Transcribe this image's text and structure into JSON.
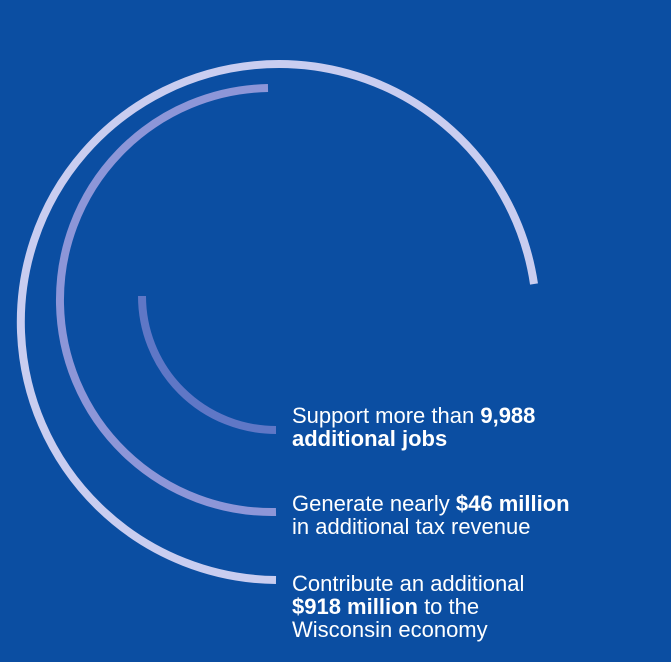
{
  "stats": [
    {
      "line1_prefix": "Support more than ",
      "line1_bold": "9,988",
      "line2_bold": "additional jobs",
      "line2_rest": ""
    },
    {
      "line1_prefix": "Generate nearly ",
      "line1_bold": "$46 million",
      "line2_bold": "",
      "line2_rest": "in additional tax revenue"
    },
    {
      "line1_prefix": "Contribute an additional",
      "line1_bold": "",
      "line2_bold": "$918 million",
      "line2_rest": " to the",
      "line3": "Wisconsin economy"
    }
  ],
  "colors": {
    "background": "#0b4ea2",
    "arc_outer": "#c9cdf0",
    "arc_middle": "#8d96d8",
    "arc_inner": "#5f77c6",
    "text": "#ffffff"
  }
}
